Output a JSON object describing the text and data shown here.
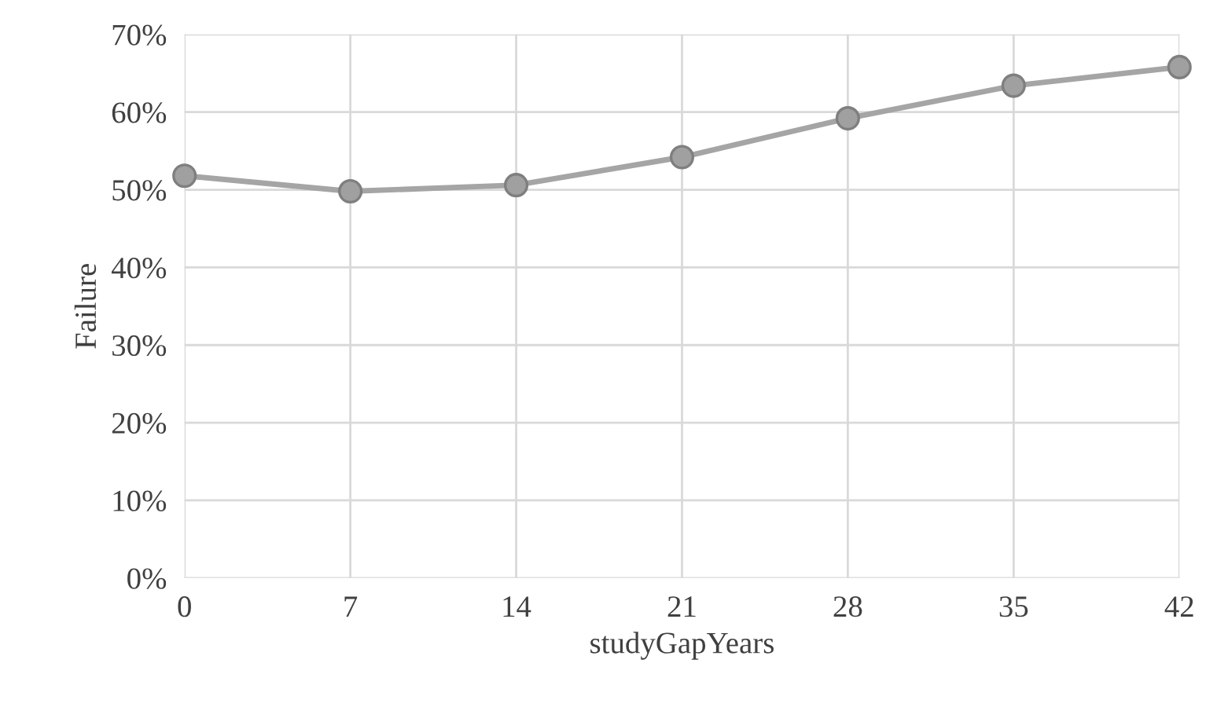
{
  "chart_data": {
    "type": "line",
    "xlabel": "studyGapYears",
    "ylabel": "Failure",
    "x": [
      0,
      7,
      14,
      21,
      28,
      35,
      42
    ],
    "series": [
      {
        "color": "#a5a5a5",
        "values": [
          51.8,
          49.8,
          50.6,
          54.2,
          59.2,
          63.4,
          65.8
        ]
      }
    ],
    "xlim": [
      0,
      42
    ],
    "xticks": [
      0,
      7,
      14,
      21,
      28,
      35,
      42
    ],
    "ylim": [
      0,
      70
    ],
    "yticks": [
      {
        "value": 0,
        "label": "0%"
      },
      {
        "value": 10,
        "label": "10%"
      },
      {
        "value": 20,
        "label": "20%"
      },
      {
        "value": 30,
        "label": "30%"
      },
      {
        "value": 40,
        "label": "40%"
      },
      {
        "value": 50,
        "label": "50%"
      },
      {
        "value": 60,
        "label": "60%"
      },
      {
        "value": 70,
        "label": "70%"
      }
    ],
    "grid": true,
    "marker": "circle",
    "line_style": "solid",
    "legend": false
  }
}
